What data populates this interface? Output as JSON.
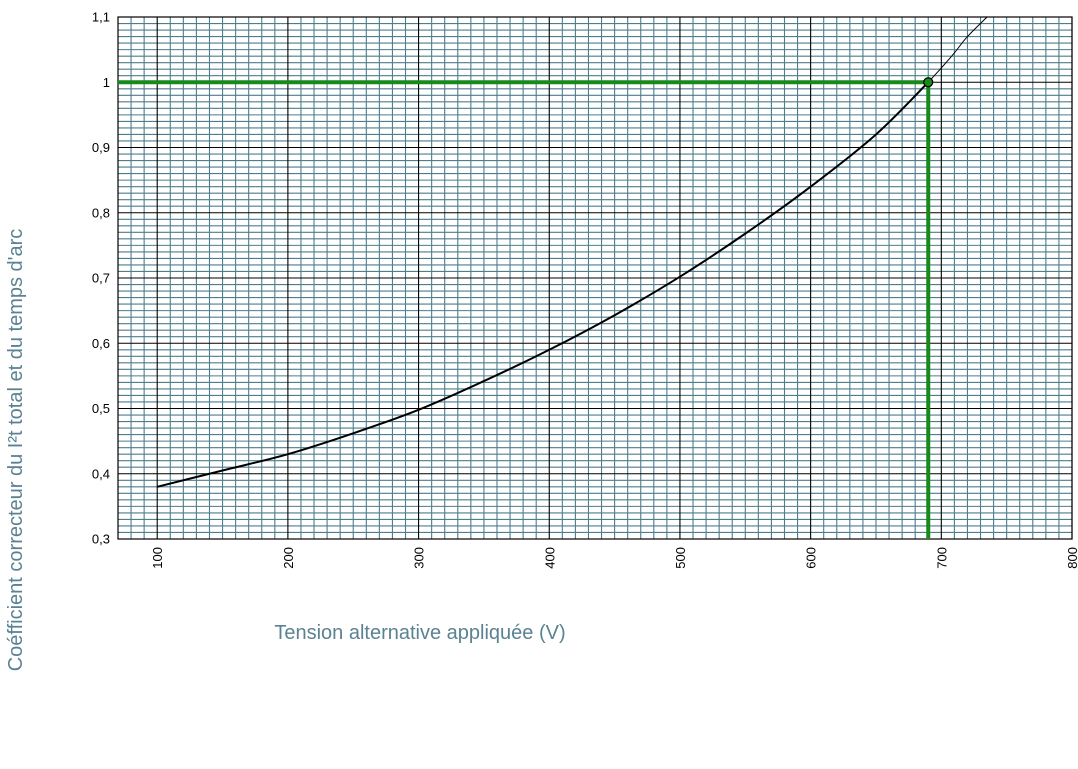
{
  "chart_data": {
    "type": "line",
    "title": "",
    "xlabel": "Tension alternative appliquée (V)",
    "ylabel": "Coéfficient correcteur du I²t total et du temps d'arc",
    "xlim": [
      70,
      800
    ],
    "ylim": [
      0.3,
      1.1
    ],
    "x_ticks": [
      100,
      200,
      300,
      400,
      500,
      600,
      700,
      800
    ],
    "x_tick_labels": [
      "100",
      "200",
      "300",
      "400",
      "500",
      "600",
      "700",
      "800"
    ],
    "y_ticks": [
      0.3,
      0.4,
      0.5,
      0.6,
      0.7,
      0.8,
      0.9,
      1.0,
      1.1
    ],
    "y_tick_labels": [
      "0,3",
      "0,4",
      "0,5",
      "0,6",
      "0,7",
      "0,8",
      "0,9",
      "1",
      "1,1"
    ],
    "grid": true,
    "series": [
      {
        "x": [
          100,
          150,
          200,
          250,
          300,
          350,
          400,
          450,
          500,
          550,
          600,
          650,
          690
        ],
        "y": [
          0.38,
          0.405,
          0.43,
          0.462,
          0.498,
          0.542,
          0.59,
          0.643,
          0.702,
          0.768,
          0.84,
          0.92,
          1.0
        ]
      },
      {
        "x": [
          690,
          700,
          710,
          720,
          735
        ],
        "y": [
          1.0,
          1.022,
          1.045,
          1.07,
          1.1
        ]
      }
    ],
    "reference_point": {
      "x": 690,
      "y": 1.0
    },
    "colors": {
      "grid_minor": "#4e7d8c",
      "grid_major": "#000000",
      "curve": "#000000",
      "highlight": "#178a1a",
      "axis_title": "#5a8292"
    }
  }
}
